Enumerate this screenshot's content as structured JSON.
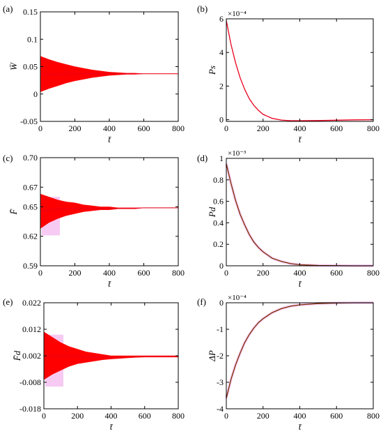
{
  "colors": {
    "band": "#ff0000",
    "line_red": "#e8001c",
    "line_dark": "#7a2a00",
    "shadow": "#f3b4f0"
  },
  "chart_data": [
    {
      "panel": "(a)",
      "type": "area",
      "variant": "envelope",
      "xlabel": "t̄",
      "ylabel": "W̄",
      "xlim": [
        0,
        800
      ],
      "ylim": [
        -0.05,
        0.15
      ],
      "xticks": [
        "0",
        "200",
        "400",
        "600",
        "800"
      ],
      "yticks": [
        "-0.05",
        "0",
        "0.05",
        "0.1",
        "0.15"
      ],
      "multiplier": "",
      "x": [
        0,
        50,
        100,
        150,
        200,
        250,
        300,
        350,
        400,
        450,
        500,
        550,
        600,
        700,
        800
      ],
      "upper": [
        0.069,
        0.063,
        0.058,
        0.054,
        0.05,
        0.047,
        0.044,
        0.042,
        0.04,
        0.039,
        0.038,
        0.038,
        0.037,
        0.037,
        0.037
      ],
      "lower": [
        0.004,
        0.01,
        0.015,
        0.02,
        0.024,
        0.027,
        0.03,
        0.032,
        0.034,
        0.035,
        0.036,
        0.036,
        0.037,
        0.037,
        0.037
      ]
    },
    {
      "panel": "(b)",
      "type": "line",
      "xlabel": "t̄",
      "ylabel": "Ps",
      "xlim": [
        0,
        800
      ],
      "ylim": [
        -0.1,
        6
      ],
      "xticks": [
        "0",
        "200",
        "400",
        "600",
        "800"
      ],
      "yticks": [
        "0",
        "2",
        "4",
        "6"
      ],
      "multiplier": "×10⁻⁴",
      "x": [
        0,
        25,
        50,
        75,
        100,
        125,
        150,
        175,
        200,
        250,
        300,
        350,
        400,
        500,
        600,
        700,
        800
      ],
      "y": [
        5.9,
        4.5,
        3.4,
        2.5,
        1.8,
        1.25,
        0.85,
        0.55,
        0.32,
        0.08,
        -0.02,
        -0.06,
        -0.06,
        -0.05,
        -0.03,
        -0.01,
        0.0
      ]
    },
    {
      "panel": "(c)",
      "type": "area",
      "variant": "envelope",
      "xlabel": "t̄",
      "ylabel": "F̄",
      "xlim": [
        0,
        800
      ],
      "ylim": [
        0.59,
        0.7
      ],
      "xticks": [
        "0",
        "200",
        "400",
        "600",
        "800"
      ],
      "yticks": [
        "0.59",
        "0.62",
        "0.65",
        "0.67",
        "0.70"
      ],
      "multiplier": "",
      "x": [
        0,
        50,
        100,
        150,
        200,
        250,
        300,
        350,
        400,
        450,
        500,
        550,
        600,
        700,
        800
      ],
      "upper": [
        0.663,
        0.66,
        0.657,
        0.655,
        0.654,
        0.652,
        0.651,
        0.65,
        0.65,
        0.649,
        0.649,
        0.649,
        0.649,
        0.649,
        0.649
      ],
      "lower": [
        0.628,
        0.634,
        0.638,
        0.641,
        0.643,
        0.645,
        0.646,
        0.647,
        0.647,
        0.648,
        0.648,
        0.648,
        0.649,
        0.649,
        0.649
      ]
    },
    {
      "panel": "(d)",
      "type": "line",
      "xlabel": "t̄",
      "ylabel": "Pd",
      "xlim": [
        0,
        800
      ],
      "ylim": [
        0,
        1
      ],
      "xticks": [
        "0",
        "200",
        "400",
        "600",
        "800"
      ],
      "yticks": [
        "0",
        "0.2",
        "0.4",
        "0.6",
        "0.8",
        "1"
      ],
      "multiplier": "×10⁻³",
      "x": [
        0,
        25,
        50,
        75,
        100,
        125,
        150,
        175,
        200,
        250,
        300,
        350,
        400,
        500,
        600,
        700,
        800
      ],
      "y": [
        0.95,
        0.77,
        0.61,
        0.48,
        0.38,
        0.29,
        0.22,
        0.17,
        0.13,
        0.07,
        0.04,
        0.02,
        0.01,
        0.003,
        0.001,
        0.0,
        0.0
      ]
    },
    {
      "panel": "(e)",
      "type": "area",
      "variant": "envelope",
      "xlabel": "t̄",
      "ylabel": "F̄d",
      "xlim": [
        0,
        800
      ],
      "ylim": [
        -0.018,
        0.022
      ],
      "xticks": [
        "0",
        "200",
        "400",
        "600",
        "800"
      ],
      "yticks": [
        "-0.018",
        "-0.008",
        "0.002",
        "0.012",
        "0.022"
      ],
      "multiplier": "",
      "x": [
        0,
        50,
        100,
        150,
        200,
        250,
        300,
        350,
        400,
        450,
        500,
        550,
        600,
        700,
        800
      ],
      "upper": [
        0.011,
        0.009,
        0.007,
        0.0055,
        0.0045,
        0.0035,
        0.003,
        0.0025,
        0.002,
        0.002,
        0.002,
        0.002,
        0.002,
        0.002,
        0.002
      ],
      "lower": [
        -0.007,
        -0.005,
        -0.0035,
        -0.002,
        -0.001,
        -0.0005,
        0.0,
        0.0005,
        0.0008,
        0.001,
        0.0012,
        0.0014,
        0.0015,
        0.0015,
        0.0015
      ]
    },
    {
      "panel": "(f)",
      "type": "line",
      "xlabel": "t̄",
      "ylabel": "ΔP",
      "xlim": [
        0,
        800
      ],
      "ylim": [
        -4,
        0
      ],
      "xticks": [
        "0",
        "200",
        "400",
        "600",
        "800"
      ],
      "yticks": [
        "-4",
        "-3",
        "-2",
        "-1",
        "0"
      ],
      "multiplier": "×10⁻⁴",
      "x": [
        0,
        25,
        50,
        75,
        100,
        125,
        150,
        175,
        200,
        250,
        300,
        350,
        400,
        500,
        600,
        700,
        800
      ],
      "y": [
        -3.6,
        -2.9,
        -2.35,
        -1.9,
        -1.5,
        -1.2,
        -0.95,
        -0.75,
        -0.6,
        -0.37,
        -0.22,
        -0.13,
        -0.08,
        -0.03,
        -0.01,
        0.0,
        0.0
      ]
    }
  ]
}
